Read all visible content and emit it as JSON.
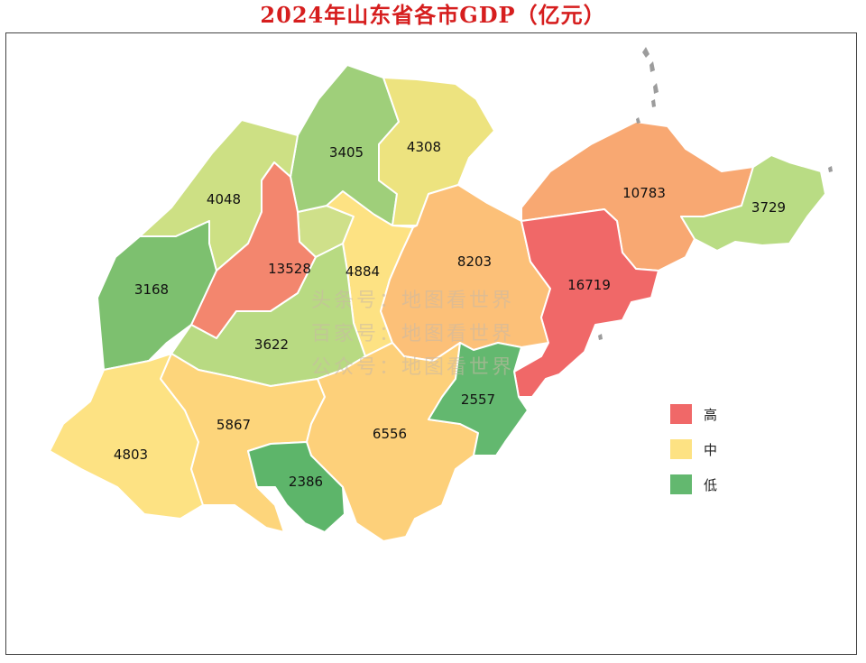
{
  "title": "2024年山东省各市GDP（亿元）",
  "colors": {
    "high": "#f06868",
    "mid": "#fde283",
    "low": "#63b86f"
  },
  "regions": [
    {
      "id": "binzhou",
      "value": "3405",
      "color": "#9fcf7a"
    },
    {
      "id": "dongying",
      "value": "4308",
      "color": "#ede37f"
    },
    {
      "id": "dezhou",
      "value": "4048",
      "color": "#cde084"
    },
    {
      "id": "jinan",
      "value": "13528",
      "color": "#f3866e"
    },
    {
      "id": "zibo",
      "value": "4884",
      "color": "#fde283"
    },
    {
      "id": "weifang",
      "value": "8203",
      "color": "#fcc078"
    },
    {
      "id": "yantai",
      "value": "10783",
      "color": "#f8a872"
    },
    {
      "id": "weihai",
      "value": "3729",
      "color": "#b9dc84"
    },
    {
      "id": "qingdao",
      "value": "16719",
      "color": "#f06868"
    },
    {
      "id": "liaocheng",
      "value": "3168",
      "color": "#7dc06f"
    },
    {
      "id": "taian",
      "value": "3622",
      "color": "#b8da82"
    },
    {
      "id": "rizhao",
      "value": "2557",
      "color": "#63b86f"
    },
    {
      "id": "heze",
      "value": "4803",
      "color": "#fde283"
    },
    {
      "id": "jining",
      "value": "5867",
      "color": "#fdd57b"
    },
    {
      "id": "linyi",
      "value": "6556",
      "color": "#fdd07a"
    },
    {
      "id": "zaozhuang",
      "value": "2386",
      "color": "#5db56a"
    },
    {
      "id": "laiwu",
      "value": "",
      "color": "#cfe08a"
    }
  ],
  "legend": [
    {
      "label": "高",
      "color": "#f06868"
    },
    {
      "label": "中",
      "color": "#fde283"
    },
    {
      "label": "低",
      "color": "#63b86f"
    }
  ],
  "watermark": [
    "头条号：地图看世界",
    "百家号：地图看世界",
    "公众号：地图看世界"
  ]
}
